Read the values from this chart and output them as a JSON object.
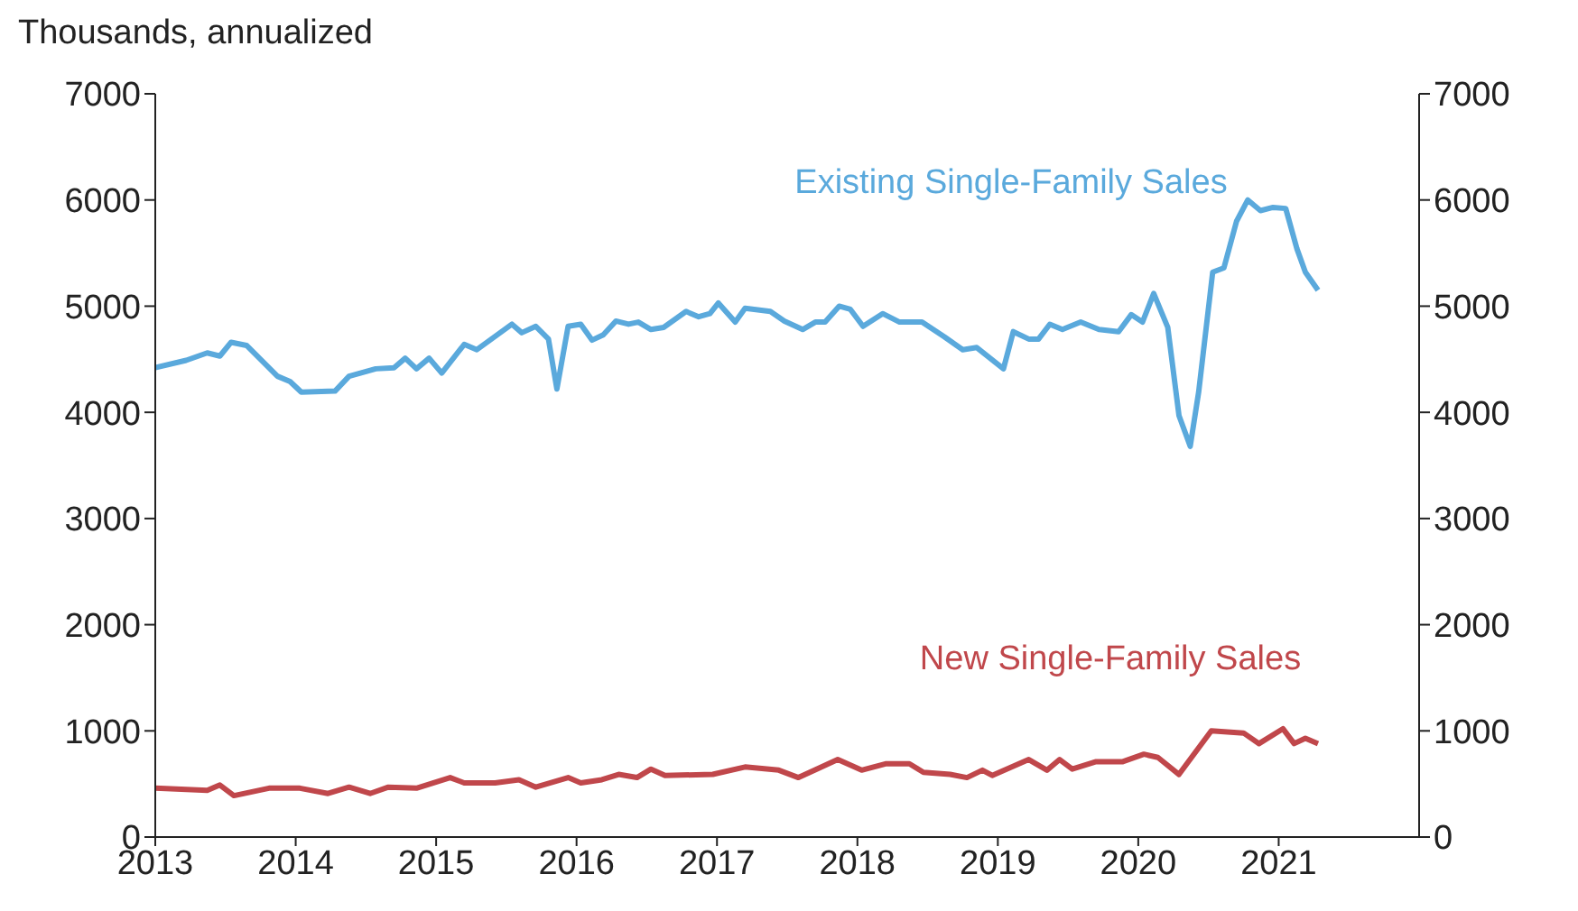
{
  "chart_data": {
    "type": "line",
    "ylabel": "Thousands, annualized",
    "xlim": [
      2013,
      2022
    ],
    "xticks": [
      2013,
      2014,
      2015,
      2016,
      2017,
      2018,
      2019,
      2020,
      2021
    ],
    "ylim": [
      0,
      7000
    ],
    "yticks": [
      0,
      1000,
      2000,
      3000,
      4000,
      5000,
      6000,
      7000
    ],
    "y2lim": [
      0,
      7000
    ],
    "y2ticks": [
      0,
      1000,
      2000,
      3000,
      4000,
      5000,
      6000,
      7000
    ],
    "grid": false,
    "legend": false,
    "marker": "none",
    "line_style": "solid",
    "series": [
      {
        "name": "Existing Single-Family Sales",
        "color": "#5aa9dc",
        "x": [
          2013.0,
          2013.22,
          2013.37,
          2013.46,
          2013.54,
          2013.65,
          2013.87,
          2013.96,
          2014.04,
          2014.28,
          2014.38,
          2014.57,
          2014.7,
          2014.78,
          2014.86,
          2014.95,
          2015.04,
          2015.2,
          2015.29,
          2015.54,
          2015.61,
          2015.71,
          2015.8,
          2015.86,
          2015.94,
          2016.03,
          2016.11,
          2016.19,
          2016.28,
          2016.37,
          2016.44,
          2016.53,
          2016.62,
          2016.78,
          2016.87,
          2016.95,
          2017.01,
          2017.13,
          2017.2,
          2017.38,
          2017.48,
          2017.61,
          2017.7,
          2017.77,
          2017.87,
          2017.95,
          2018.04,
          2018.18,
          2018.3,
          2018.46,
          2018.62,
          2018.75,
          2018.85,
          2019.04,
          2019.11,
          2019.22,
          2019.29,
          2019.37,
          2019.46,
          2019.59,
          2019.72,
          2019.86,
          2019.95,
          2020.03,
          2020.11,
          2020.21,
          2020.29,
          2020.37,
          2020.43,
          2020.53,
          2020.61,
          2020.7,
          2020.78,
          2020.87,
          2020.96,
          2021.05,
          2021.13,
          2021.19,
          2021.28
        ],
        "values": [
          4420,
          4490,
          4560,
          4530,
          4660,
          4630,
          4340,
          4290,
          4190,
          4200,
          4340,
          4410,
          4420,
          4510,
          4410,
          4510,
          4370,
          4640,
          4590,
          4830,
          4750,
          4810,
          4690,
          4220,
          4810,
          4830,
          4680,
          4730,
          4860,
          4830,
          4850,
          4780,
          4800,
          4950,
          4900,
          4930,
          5030,
          4850,
          4980,
          4950,
          4860,
          4780,
          4850,
          4850,
          5000,
          4970,
          4810,
          4930,
          4850,
          4850,
          4710,
          4590,
          4610,
          4410,
          4760,
          4690,
          4690,
          4830,
          4780,
          4850,
          4780,
          4760,
          4920,
          4850,
          5120,
          4800,
          3970,
          3680,
          4190,
          5320,
          5360,
          5800,
          6000,
          5900,
          5930,
          5920,
          5540,
          5320,
          5150
        ]
      },
      {
        "name": "New Single-Family Sales",
        "color": "#c0474b",
        "x": [
          2013.0,
          2013.37,
          2013.46,
          2013.56,
          2013.81,
          2014.03,
          2014.23,
          2014.38,
          2014.53,
          2014.66,
          2014.86,
          2015.1,
          2015.2,
          2015.42,
          2015.59,
          2015.71,
          2015.94,
          2016.03,
          2016.18,
          2016.3,
          2016.43,
          2016.53,
          2016.63,
          2016.97,
          2017.2,
          2017.44,
          2017.58,
          2017.71,
          2017.86,
          2018.03,
          2018.2,
          2018.37,
          2018.47,
          2018.66,
          2018.78,
          2018.89,
          2018.96,
          2019.22,
          2019.35,
          2019.44,
          2019.53,
          2019.7,
          2019.89,
          2020.04,
          2020.14,
          2020.29,
          2020.52,
          2020.75,
          2020.86,
          2021.03,
          2021.11,
          2021.19,
          2021.28
        ],
        "values": [
          460,
          440,
          490,
          390,
          460,
          460,
          410,
          470,
          410,
          470,
          460,
          560,
          510,
          510,
          540,
          470,
          560,
          510,
          540,
          590,
          560,
          640,
          580,
          590,
          660,
          630,
          560,
          640,
          730,
          630,
          690,
          690,
          610,
          590,
          560,
          630,
          580,
          730,
          630,
          730,
          640,
          710,
          710,
          780,
          750,
          590,
          1000,
          980,
          880,
          1020,
          880,
          930,
          880
        ]
      }
    ]
  }
}
